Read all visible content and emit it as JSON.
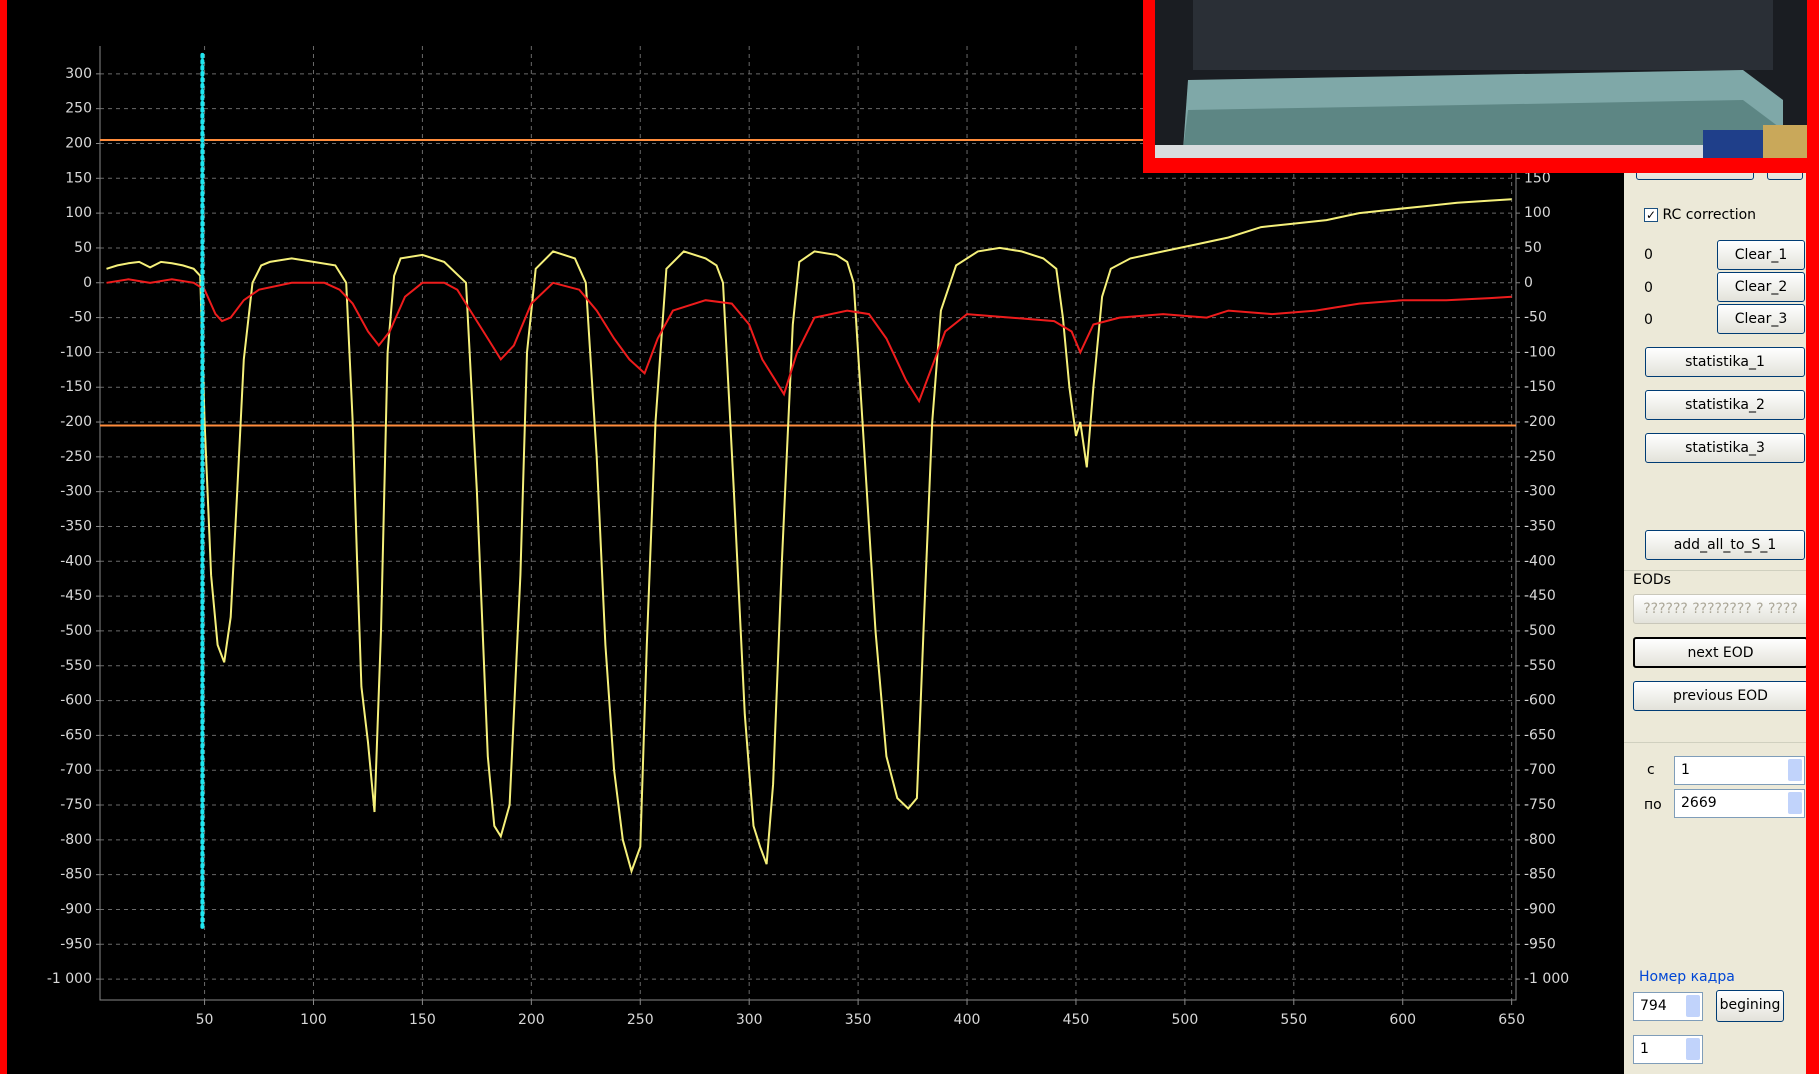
{
  "chart_data": {
    "type": "line",
    "xlim": [
      2,
      652
    ],
    "ylim": [
      -1030,
      340
    ],
    "y2lim": [
      -1030,
      340
    ],
    "xticks": [
      50,
      100,
      150,
      200,
      250,
      300,
      350,
      400,
      450,
      500,
      550,
      600,
      650
    ],
    "yticks": [
      300,
      250,
      200,
      150,
      100,
      50,
      0,
      -50,
      -100,
      -150,
      -200,
      -250,
      -300,
      -350,
      -400,
      -450,
      -500,
      -550,
      -600,
      -650,
      -700,
      -750,
      -800,
      -850,
      -900,
      -950,
      {
        "value": -1000,
        "label": "-1 000"
      }
    ],
    "y2ticks": [
      150,
      100,
      50,
      0,
      -50,
      -100,
      -150,
      -200,
      -250,
      -300,
      -350,
      -400,
      -450,
      -500,
      -550,
      -600,
      -650,
      -700,
      -750,
      -800,
      -850,
      -900,
      -950,
      {
        "value": -1000,
        "label": "-1 000"
      }
    ],
    "grid": true,
    "hlines": [
      {
        "value": 205,
        "color": "#ff8c3c"
      },
      {
        "value": -205,
        "color": "#ff8c3c"
      }
    ],
    "cursor": {
      "x": 49,
      "ylim": [
        -925,
        330
      ],
      "color": "#1ee6f0"
    },
    "series": [
      {
        "color": "#f5f07a",
        "x": [
          5,
          10,
          15,
          20,
          25,
          30,
          35,
          40,
          45,
          48,
          50,
          53,
          56,
          59,
          62,
          65,
          68,
          72,
          76,
          80,
          90,
          100,
          110,
          115,
          118,
          120,
          122,
          125,
          128,
          131,
          134,
          137,
          140,
          150,
          160,
          170,
          175,
          180,
          183,
          186,
          190,
          195,
          198,
          202,
          210,
          220,
          225,
          230,
          234,
          238,
          242,
          246,
          250,
          253,
          257,
          262,
          270,
          280,
          285,
          288,
          293,
          298,
          302,
          305,
          308,
          311,
          315,
          320,
          323,
          330,
          340,
          345,
          348,
          352,
          358,
          363,
          368,
          373,
          377,
          380,
          384,
          388,
          395,
          405,
          415,
          425,
          435,
          441,
          444,
          447,
          450,
          452,
          455,
          458,
          462,
          466,
          475,
          490,
          505,
          520,
          535,
          550,
          565,
          580,
          595,
          610,
          625,
          640,
          650
        ],
        "values": [
          20,
          25,
          28,
          30,
          22,
          30,
          28,
          25,
          20,
          10,
          -200,
          -420,
          -520,
          -545,
          -480,
          -300,
          -110,
          0,
          25,
          30,
          35,
          30,
          25,
          0,
          -200,
          -400,
          -580,
          -660,
          -760,
          -500,
          -100,
          10,
          35,
          40,
          30,
          0,
          -300,
          -680,
          -780,
          -795,
          -750,
          -420,
          -100,
          20,
          45,
          35,
          0,
          -250,
          -520,
          -700,
          -800,
          -845,
          -810,
          -520,
          -200,
          20,
          45,
          35,
          25,
          0,
          -300,
          -620,
          -780,
          -810,
          -835,
          -720,
          -400,
          -60,
          30,
          45,
          40,
          30,
          0,
          -200,
          -500,
          -680,
          -740,
          -755,
          -740,
          -500,
          -200,
          -40,
          25,
          45,
          50,
          45,
          35,
          20,
          -50,
          -150,
          -220,
          -200,
          -265,
          -150,
          -20,
          20,
          35,
          45,
          55,
          65,
          80,
          85,
          90,
          100,
          105,
          110,
          115,
          118,
          120
        ]
      },
      {
        "color": "#ee1c1c",
        "x": [
          5,
          15,
          25,
          35,
          45,
          50,
          55,
          58,
          62,
          68,
          75,
          90,
          105,
          112,
          118,
          125,
          130,
          135,
          142,
          150,
          160,
          166,
          172,
          180,
          186,
          192,
          200,
          210,
          222,
          230,
          238,
          245,
          252,
          258,
          265,
          280,
          292,
          300,
          306,
          312,
          316,
          322,
          330,
          345,
          355,
          363,
          372,
          378,
          384,
          390,
          400,
          420,
          440,
          448,
          452,
          458,
          470,
          490,
          510,
          520,
          540,
          560,
          580,
          600,
          620,
          640,
          650
        ],
        "values": [
          0,
          5,
          0,
          5,
          0,
          -10,
          -45,
          -55,
          -50,
          -25,
          -10,
          0,
          0,
          -10,
          -30,
          -70,
          -90,
          -70,
          -20,
          0,
          0,
          -10,
          -40,
          -80,
          -110,
          -90,
          -30,
          0,
          -10,
          -40,
          -80,
          -110,
          -130,
          -80,
          -40,
          -25,
          -30,
          -60,
          -110,
          -140,
          -160,
          -100,
          -50,
          -40,
          -45,
          -80,
          -140,
          -170,
          -120,
          -70,
          -45,
          -50,
          -55,
          -70,
          -100,
          -60,
          -50,
          -45,
          -50,
          -40,
          -45,
          -40,
          -30,
          -25,
          -25,
          -22,
          -20
        ]
      }
    ]
  },
  "panel": {
    "rc_correction": {
      "label": "RC correction",
      "checked": true
    },
    "counters": [
      "0",
      "0",
      "0"
    ],
    "clear_buttons": [
      "Clear_1",
      "Clear_2",
      "Clear_3"
    ],
    "stat_buttons": [
      "statistika_1",
      "statistika_2",
      "statistika_3"
    ],
    "add_button": "add_all_to_S_1",
    "eods": {
      "title": "EODs",
      "disabled_button": "?????? ???????? ? ????",
      "next": "next EOD",
      "previous": "previous EOD"
    },
    "range": {
      "from_label": "с",
      "from_value": "1",
      "to_label": "по",
      "to_value": "2669"
    },
    "frame": {
      "title": "Номер кадра",
      "value": "794",
      "button": "begining",
      "step": "1"
    }
  }
}
